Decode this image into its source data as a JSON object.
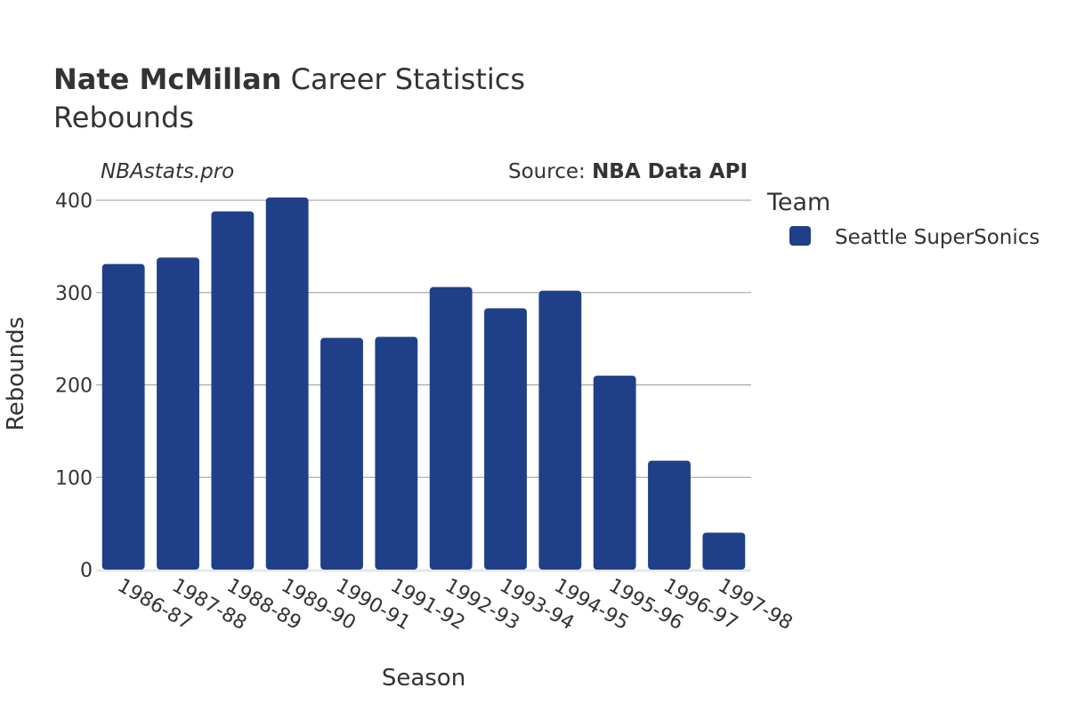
{
  "header": {
    "title_bold": "Nate McMillan",
    "title_rest": " Career Statistics",
    "subtitle": "Rebounds",
    "watermark": "NBAstats.pro",
    "source_prefix": "Source: ",
    "source_name": "NBA Data API"
  },
  "legend": {
    "title": "Team",
    "items": [
      {
        "label": "Seattle SuperSonics",
        "color": "#1f4088"
      }
    ]
  },
  "chart_data": {
    "type": "bar",
    "title": "Nate McMillan Career Statistics",
    "subtitle": "Rebounds",
    "xlabel": "Season",
    "ylabel": "Rebounds",
    "ylim": [
      0,
      400
    ],
    "yticks": [
      0,
      100,
      200,
      300,
      400
    ],
    "grid": true,
    "legend_position": "right",
    "categories": [
      "1986-87",
      "1987-88",
      "1988-89",
      "1989-90",
      "1990-91",
      "1991-92",
      "1992-93",
      "1993-94",
      "1994-95",
      "1995-96",
      "1996-97",
      "1997-98"
    ],
    "series": [
      {
        "name": "Seattle SuperSonics",
        "color": "#1f4088",
        "values": [
          331,
          338,
          388,
          403,
          251,
          252,
          306,
          283,
          302,
          210,
          118,
          40
        ]
      }
    ]
  }
}
